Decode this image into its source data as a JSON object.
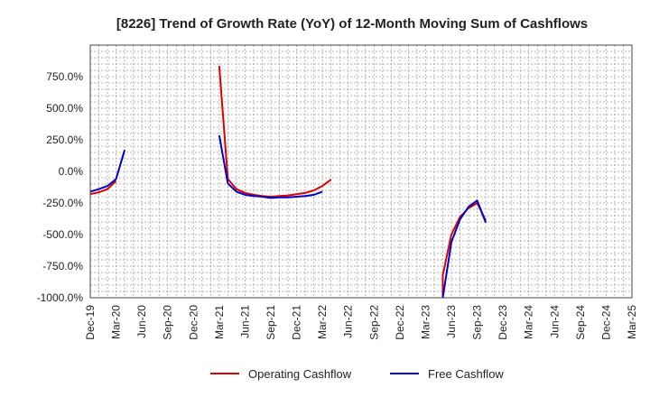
{
  "chart_data": {
    "type": "line",
    "title": "[8226]  Trend of Growth Rate (YoY) of 12-Month Moving Sum of Cashflows",
    "xlabel": "",
    "ylabel": "",
    "ylim": [
      -1000,
      1000
    ],
    "yticks": [
      {
        "value": 750,
        "label": "750.0%"
      },
      {
        "value": 500,
        "label": "500.0%"
      },
      {
        "value": 250,
        "label": "250.0%"
      },
      {
        "value": 0,
        "label": "0.0%"
      },
      {
        "value": -250,
        "label": "-250.0%"
      },
      {
        "value": -500,
        "label": "-500.0%"
      },
      {
        "value": -750,
        "label": "-750.0%"
      },
      {
        "value": -1000,
        "label": "-1000.0%"
      }
    ],
    "xticks": [
      "Dec-19",
      "Mar-20",
      "Jun-20",
      "Sep-20",
      "Dec-20",
      "Mar-21",
      "Jun-21",
      "Sep-21",
      "Dec-21",
      "Mar-22",
      "Jun-22",
      "Sep-22",
      "Dec-22",
      "Mar-23",
      "Jun-23",
      "Sep-23",
      "Dec-23",
      "Mar-24",
      "Jun-24",
      "Sep-24",
      "Dec-24",
      "Mar-25"
    ],
    "x_start": "2019-12",
    "x_end": "2025-03",
    "grid": true,
    "legend_position": "bottom",
    "series": [
      {
        "name": "Operating Cashflow",
        "color": "#dd0000",
        "points": [
          {
            "x": "2019-12",
            "y": -180
          },
          {
            "x": "2020-01",
            "y": -165
          },
          {
            "x": "2020-02",
            "y": -140
          },
          {
            "x": "2020-03",
            "y": -75
          },
          null,
          {
            "x": "2021-03",
            "y": 835
          },
          {
            "x": "2021-04",
            "y": -60
          },
          {
            "x": "2021-05",
            "y": -140
          },
          {
            "x": "2021-06",
            "y": -170
          },
          {
            "x": "2021-07",
            "y": -185
          },
          {
            "x": "2021-08",
            "y": -195
          },
          {
            "x": "2021-09",
            "y": -200
          },
          {
            "x": "2021-10",
            "y": -195
          },
          {
            "x": "2021-11",
            "y": -190
          },
          {
            "x": "2021-12",
            "y": -180
          },
          {
            "x": "2022-01",
            "y": -170
          },
          {
            "x": "2022-02",
            "y": -150
          },
          {
            "x": "2022-03",
            "y": -115
          },
          {
            "x": "2022-04",
            "y": -65
          },
          null,
          {
            "x": "2023-05",
            "y": -1000
          },
          {
            "x": "2023-05",
            "y": -820
          },
          {
            "x": "2023-06",
            "y": -500
          },
          {
            "x": "2023-07",
            "y": -360
          },
          {
            "x": "2023-08",
            "y": -290
          },
          {
            "x": "2023-09",
            "y": -250
          },
          {
            "x": "2023-10",
            "y": -390
          }
        ]
      },
      {
        "name": "Free Cashflow",
        "color": "#0000cc",
        "points": [
          {
            "x": "2019-12",
            "y": -160
          },
          {
            "x": "2020-01",
            "y": -140
          },
          {
            "x": "2020-02",
            "y": -115
          },
          {
            "x": "2020-03",
            "y": -60
          },
          {
            "x": "2020-04",
            "y": 170
          },
          null,
          {
            "x": "2021-03",
            "y": 285
          },
          {
            "x": "2021-04",
            "y": -95
          },
          {
            "x": "2021-05",
            "y": -160
          },
          {
            "x": "2021-06",
            "y": -185
          },
          {
            "x": "2021-07",
            "y": -195
          },
          {
            "x": "2021-08",
            "y": -200
          },
          {
            "x": "2021-09",
            "y": -210
          },
          {
            "x": "2021-10",
            "y": -205
          },
          {
            "x": "2021-11",
            "y": -205
          },
          {
            "x": "2021-12",
            "y": -200
          },
          {
            "x": "2022-01",
            "y": -195
          },
          {
            "x": "2022-02",
            "y": -185
          },
          {
            "x": "2022-03",
            "y": -160
          },
          null,
          {
            "x": "2023-05",
            "y": -1000
          },
          {
            "x": "2023-06",
            "y": -560
          },
          {
            "x": "2023-07",
            "y": -380
          },
          {
            "x": "2023-08",
            "y": -280
          },
          {
            "x": "2023-09",
            "y": -230
          },
          {
            "x": "2023-10",
            "y": -405
          }
        ]
      }
    ]
  }
}
